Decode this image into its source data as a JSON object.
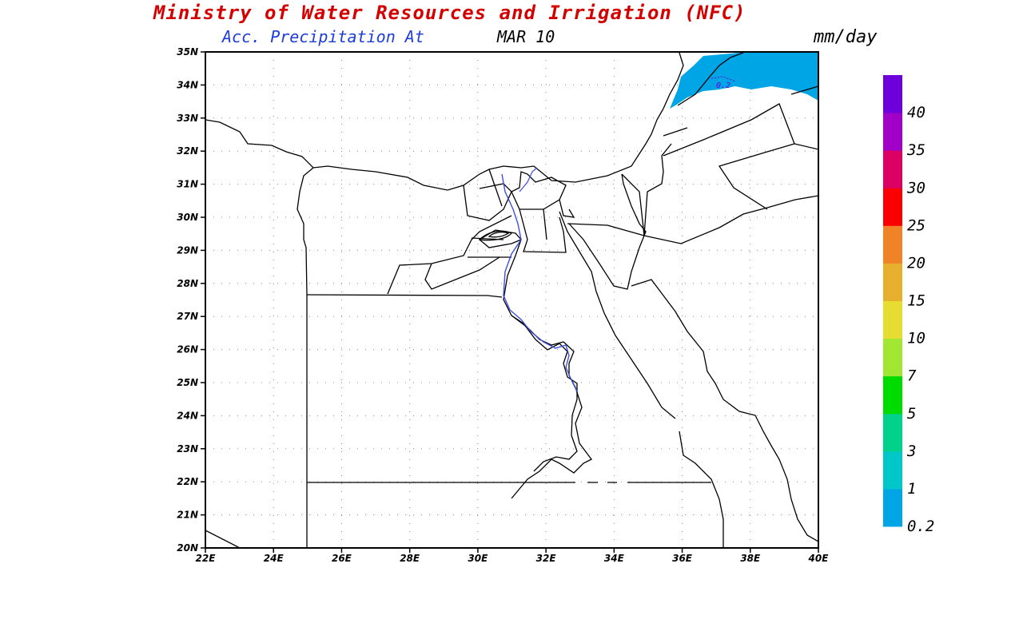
{
  "header": {
    "title": "Ministry of Water Resources and Irrigation (NFC)",
    "subtitle_field": "Acc. Precipitation  At",
    "subtitle_date": "MAR 10",
    "units": "mm/day"
  },
  "map": {
    "lat_range": [
      20,
      35
    ],
    "lon_range": [
      22,
      40
    ],
    "lat_labels": [
      "35N",
      "34N",
      "33N",
      "32N",
      "31N",
      "30N",
      "29N",
      "28N",
      "27N",
      "26N",
      "25N",
      "24N",
      "23N",
      "22N",
      "21N",
      "20N"
    ],
    "lon_labels": [
      "22E",
      "24E",
      "26E",
      "28E",
      "30E",
      "32E",
      "34E",
      "36E",
      "38E",
      "40E"
    ],
    "grid": "dotted",
    "contour_label": "0.2",
    "rain_area_color": "#00a5e6"
  },
  "colorbar": {
    "labels": [
      "0.2",
      "1",
      "3",
      "5",
      "7",
      "10",
      "15",
      "20",
      "25",
      "30",
      "35",
      "40"
    ],
    "colors": [
      "#00a5e6",
      "#00c8c8",
      "#00d28c",
      "#00dc00",
      "#a0e632",
      "#e6dc32",
      "#e6af2d",
      "#f08228",
      "#fa0000",
      "#dc0064",
      "#a000c8",
      "#6e00dc"
    ]
  }
}
